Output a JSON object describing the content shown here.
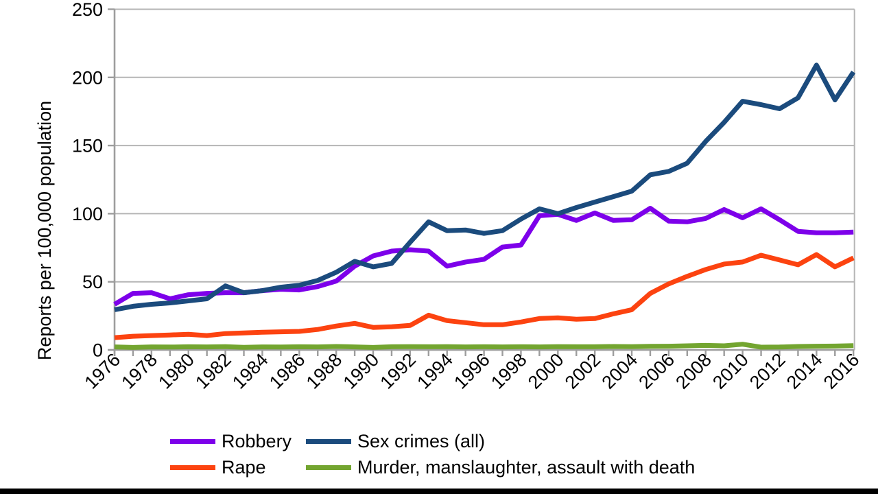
{
  "chart_data": {
    "type": "line",
    "title": "",
    "xlabel": "",
    "ylabel": "Reports per 100,000 population",
    "ylim": [
      0,
      250
    ],
    "yticks": [
      0,
      50,
      100,
      150,
      200,
      250
    ],
    "grid": true,
    "legend_position": "bottom",
    "x": [
      1976,
      1977,
      1978,
      1979,
      1980,
      1981,
      1982,
      1983,
      1984,
      1985,
      1986,
      1987,
      1988,
      1989,
      1990,
      1991,
      1992,
      1993,
      1994,
      1995,
      1996,
      1997,
      1998,
      1999,
      2000,
      2001,
      2002,
      2003,
      2004,
      2005,
      2006,
      2007,
      2008,
      2009,
      2010,
      2011,
      2012,
      2013,
      2014,
      2015,
      2016
    ],
    "xtick_labels": [
      "1976",
      "1978",
      "1980",
      "1982",
      "1984",
      "1986",
      "1988",
      "1990",
      "1992",
      "1994",
      "1996",
      "1998",
      "2000",
      "2002",
      "2004",
      "2006",
      "2008",
      "2010",
      "2012",
      "2014",
      "2016"
    ],
    "series": [
      {
        "name": "Robbery",
        "color": "#7d00ea",
        "values": [
          33.5,
          41.5,
          42,
          37.5,
          40.5,
          41.5,
          42,
          42,
          43.5,
          44.5,
          44,
          46.5,
          50.5,
          61.5,
          69,
          72.5,
          73.5,
          72.5,
          61.5,
          64.5,
          66.5,
          75.5,
          77,
          98.5,
          99.5,
          95,
          100.5,
          95,
          95.5,
          104,
          94.5,
          94,
          96.5,
          103,
          97,
          103.5,
          95.5,
          87,
          86,
          86,
          86.5
        ]
      },
      {
        "name": "Sex crimes (all)",
        "color": "#1b4b7d",
        "values": [
          29.5,
          32,
          33.5,
          34.5,
          36,
          37.5,
          47,
          42,
          43.5,
          46,
          47.5,
          51,
          57,
          65,
          61,
          63.5,
          79,
          94,
          87.5,
          88,
          85.5,
          87.5,
          96,
          103.5,
          100,
          104.5,
          108.5,
          112.5,
          116.5,
          128.5,
          131,
          137,
          153,
          167,
          182.5,
          180,
          177,
          185,
          209,
          183.5,
          204
        ]
      },
      {
        "name": "Rape",
        "color": "#fc4310",
        "values": [
          9,
          10,
          10.5,
          11,
          11.5,
          10.5,
          12,
          12.5,
          13,
          13.3,
          13.6,
          15,
          17.5,
          19.5,
          16.5,
          17,
          18,
          25.5,
          21.5,
          20,
          18.5,
          18.5,
          20.5,
          23,
          23.5,
          22.5,
          23,
          26.5,
          29.5,
          41.5,
          48.5,
          54,
          59,
          63,
          64.5,
          69.5,
          66,
          62.5,
          70,
          61,
          67.5
        ]
      },
      {
        "name": "Murder, manslaughter, assault with death",
        "color": "#73a530",
        "values": [
          2.2,
          1.8,
          2.2,
          2.1,
          2.3,
          2.2,
          2.4,
          1.9,
          2.2,
          2.1,
          2.3,
          2.2,
          2.5,
          2.2,
          1.8,
          2.3,
          2.4,
          2.3,
          2.4,
          2.2,
          2.3,
          2.2,
          2.3,
          2.2,
          2.4,
          2.3,
          2.3,
          2.5,
          2.4,
          2.6,
          2.7,
          3.0,
          3.3,
          3.0,
          4.2,
          2.0,
          2.1,
          2.5,
          2.7,
          2.8,
          3.1
        ]
      }
    ]
  },
  "colors": {
    "background": "#ffffff",
    "gridline": "#b5b5b5",
    "axis": "#9d9d9d",
    "text": "#000000",
    "bottom_bar": "#000000"
  }
}
